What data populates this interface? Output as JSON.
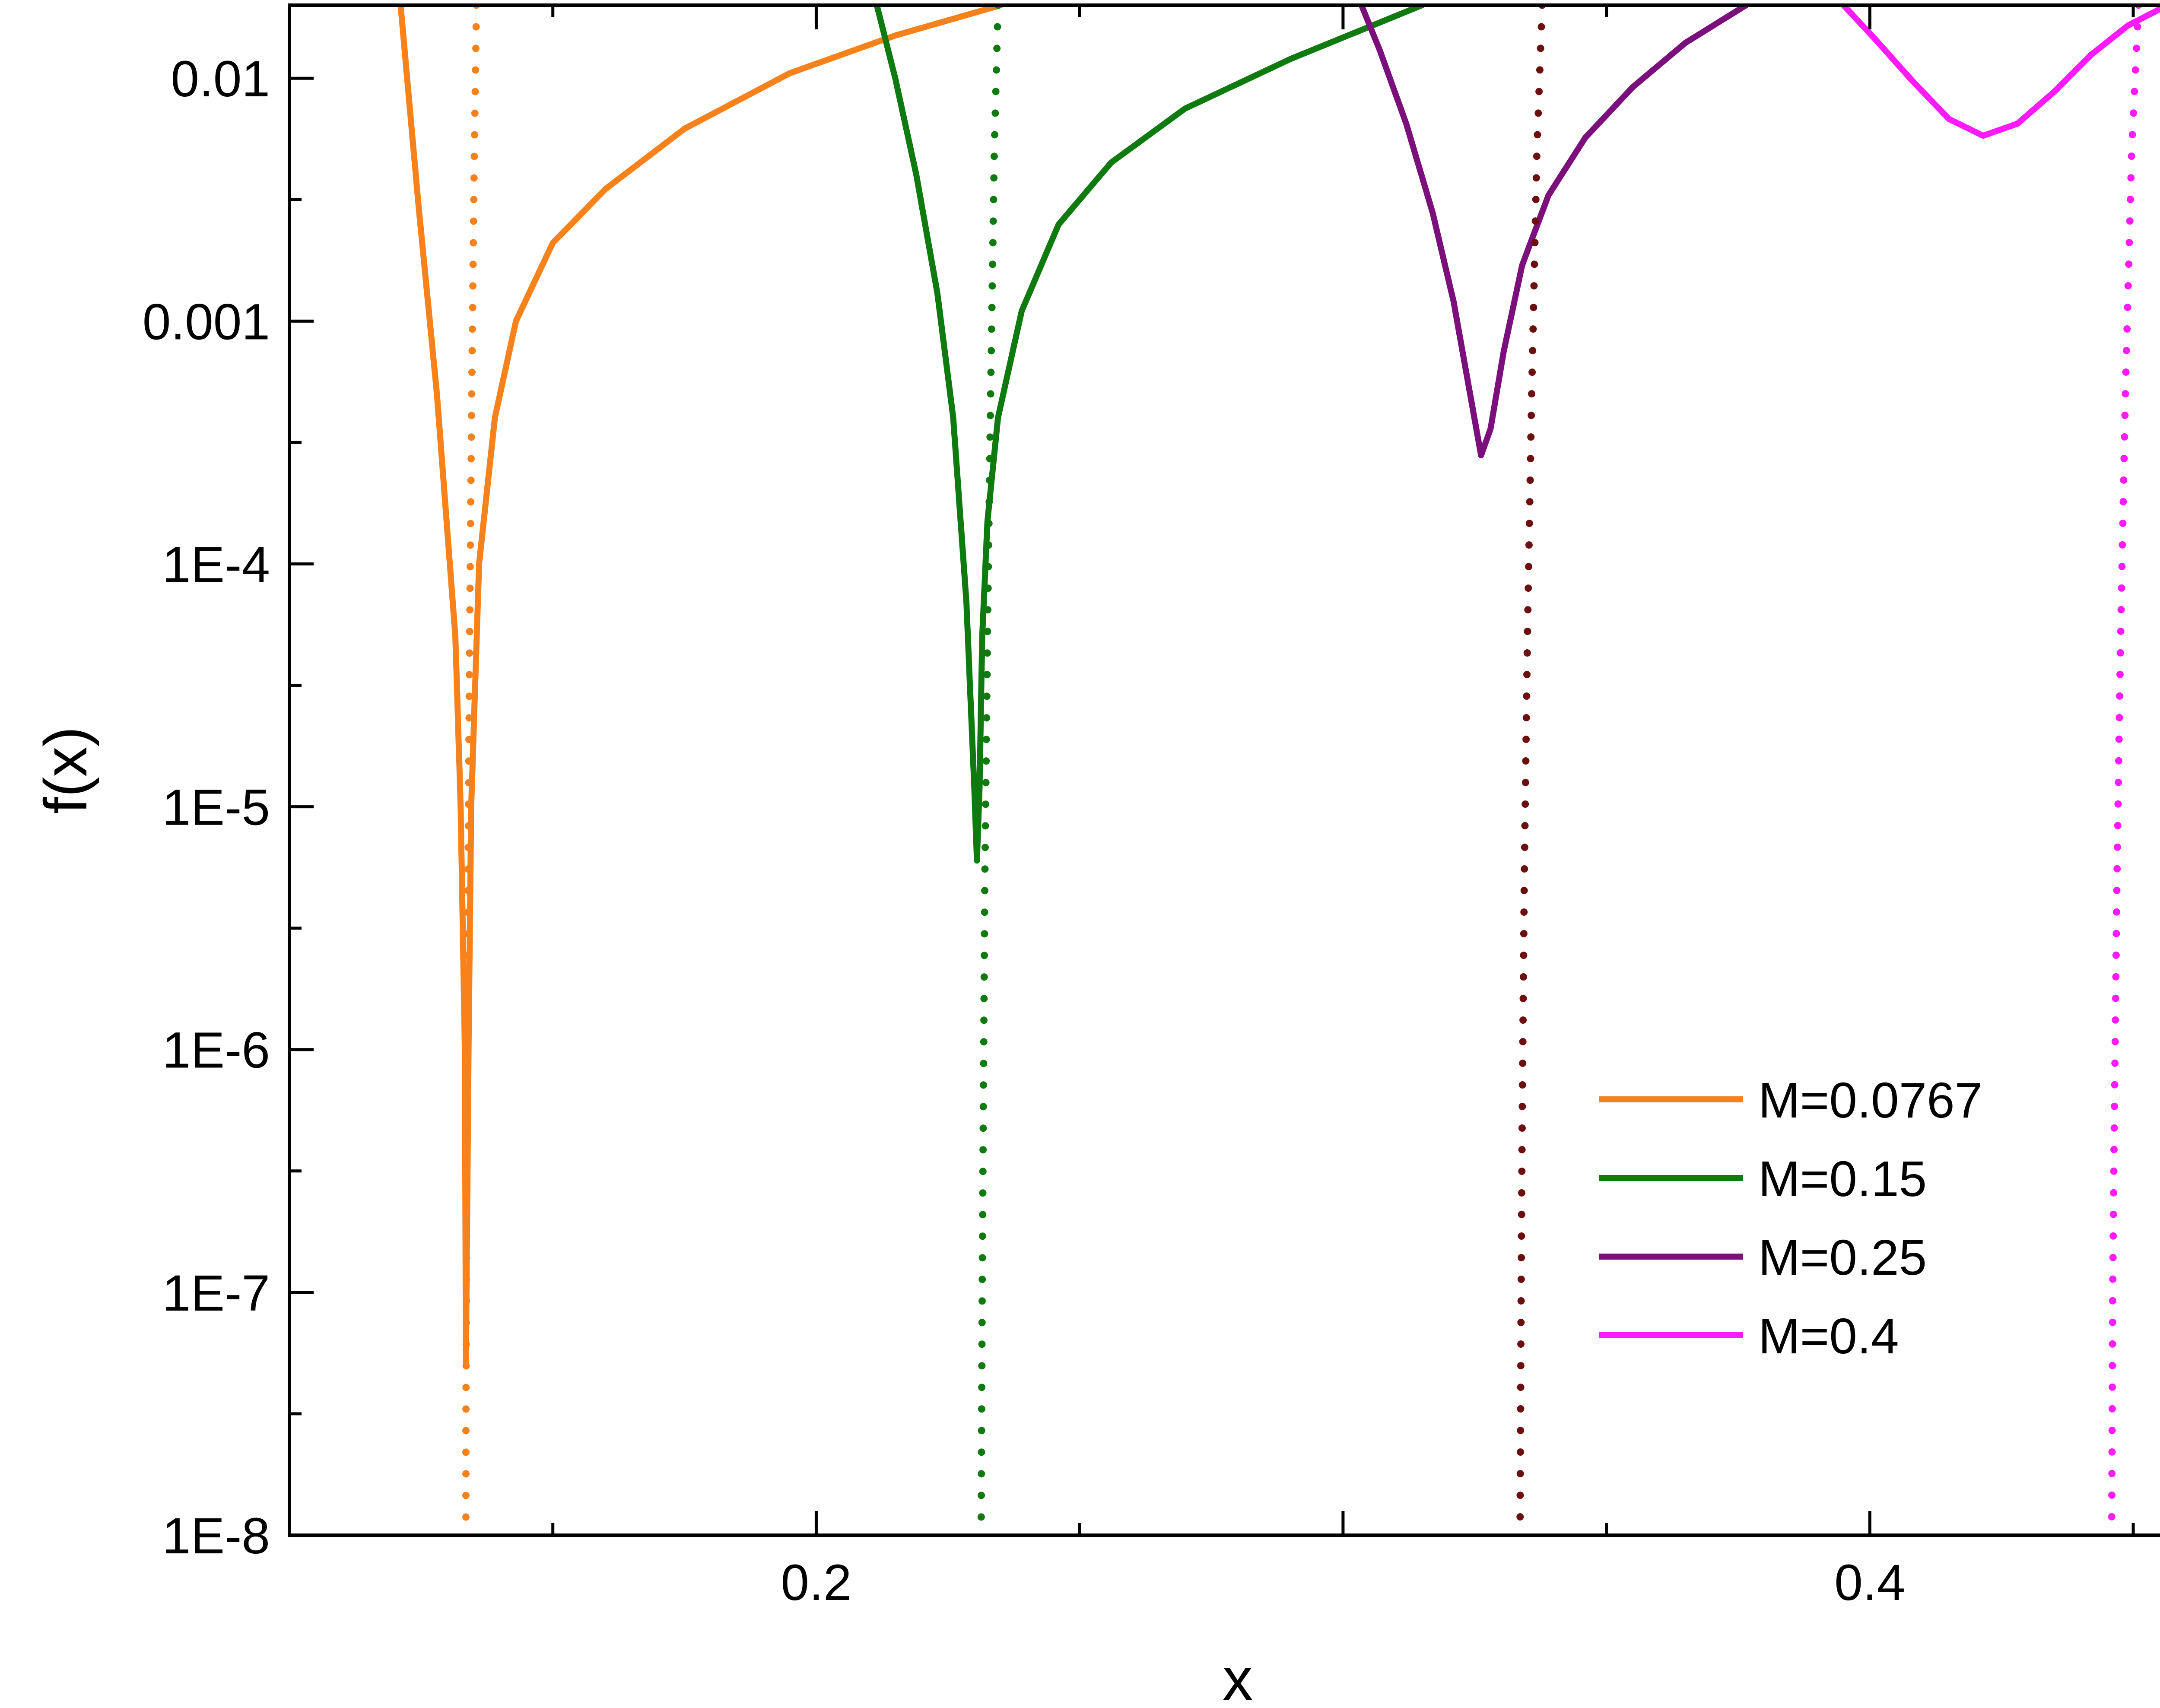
{
  "chart_data": {
    "type": "line",
    "xlabel": "x",
    "ylabel": "f(x)",
    "xscale": "linear",
    "yscale": "log",
    "xlim": [
      0.1,
      0.46
    ],
    "ylim": [
      1e-08,
      0.02
    ],
    "x_ticks": [
      0.2,
      0.4
    ],
    "x_tick_labels": [
      "0.2",
      "0.4"
    ],
    "y_ticks": [
      1e-08,
      1e-07,
      1e-06,
      1e-05,
      0.0001,
      0.001,
      0.01
    ],
    "y_tick_labels": [
      "1E-8",
      "1E-7",
      "1E-6",
      "1E-5",
      "1E-4",
      "0.001",
      "0.01"
    ],
    "legend_position": "bottom-right",
    "series": [
      {
        "name": "M=0.0767",
        "color": "#f7821b",
        "style": "solid",
        "x": [
          0.1211,
          0.1245,
          0.128,
          0.1315,
          0.1325,
          0.1333,
          0.1335,
          0.134,
          0.1345,
          0.136,
          0.139,
          0.143,
          0.15,
          0.16,
          0.175,
          0.195,
          0.215,
          0.235
        ],
        "y": [
          0.02,
          0.003,
          0.0005,
          5e-05,
          1e-05,
          1e-06,
          5e-08,
          1e-06,
          1e-05,
          0.0001,
          0.0004,
          0.001,
          0.0021,
          0.0035,
          0.0062,
          0.0105,
          0.015,
          0.02
        ]
      },
      {
        "name": "M=0.15",
        "color": "#0f7a0f",
        "style": "solid",
        "x": [
          0.2115,
          0.215,
          0.219,
          0.223,
          0.226,
          0.2285,
          0.23,
          0.2305,
          0.231,
          0.2315,
          0.2325,
          0.2345,
          0.239,
          0.246,
          0.256,
          0.27,
          0.29,
          0.315
        ],
        "y": [
          0.02,
          0.01,
          0.004,
          0.0013,
          0.0004,
          7e-05,
          1.2e-05,
          6e-06,
          1.2e-05,
          5e-05,
          0.00015,
          0.0004,
          0.0011,
          0.0025,
          0.0045,
          0.0075,
          0.012,
          0.02
        ]
      },
      {
        "name": "M=0.25",
        "color": "#7b0f7b",
        "style": "solid",
        "x": [
          0.3035,
          0.307,
          0.312,
          0.317,
          0.321,
          0.3245,
          0.3262,
          0.328,
          0.3305,
          0.334,
          0.339,
          0.346,
          0.355,
          0.365,
          0.3765
        ],
        "y": [
          0.02,
          0.013,
          0.0065,
          0.0028,
          0.0012,
          0.00045,
          0.00028,
          0.00036,
          0.00075,
          0.0017,
          0.0033,
          0.0057,
          0.0092,
          0.014,
          0.02
        ]
      },
      {
        "name": "M=0.4",
        "color": "#ff1aff",
        "style": "solid",
        "x": [
          0.395,
          0.401,
          0.408,
          0.415,
          0.4215,
          0.428,
          0.435,
          0.442,
          0.449,
          0.4565
        ],
        "y": [
          0.02,
          0.0145,
          0.0098,
          0.0068,
          0.0058,
          0.0065,
          0.0088,
          0.0125,
          0.0165,
          0.02
        ]
      },
      {
        "name": "M=0.0767 (dotted)",
        "color": "#f7821b",
        "style": "dotted",
        "x": [
          0.1355,
          0.1351,
          0.1346,
          0.1342,
          0.1339,
          0.1337,
          0.1336,
          0.1335,
          0.1335
        ],
        "y": [
          0.02,
          0.005,
          0.0005,
          5e-05,
          5e-06,
          5e-07,
          1e-07,
          3e-08,
          1e-08
        ]
      },
      {
        "name": "M=0.15 (dotted)",
        "color": "#0f7a0f",
        "style": "dotted",
        "x": [
          0.2345,
          0.2338,
          0.2331,
          0.2325,
          0.232,
          0.2317,
          0.2315,
          0.2314,
          0.2313
        ],
        "y": [
          0.02,
          0.005,
          0.0005,
          5e-05,
          5e-06,
          5e-07,
          1e-07,
          3e-08,
          1e-08
        ]
      },
      {
        "name": "M=0.25 (dotted)",
        "color": "#6e0f0f",
        "style": "dotted",
        "x": [
          0.3378,
          0.3368,
          0.3358,
          0.335,
          0.3344,
          0.334,
          0.3338,
          0.3337,
          0.3336
        ],
        "y": [
          0.02,
          0.005,
          0.0005,
          5e-05,
          5e-06,
          5e-07,
          1e-07,
          3e-08,
          1e-08
        ]
      },
      {
        "name": "M=0.4 (dotted)",
        "color": "#ff1aff",
        "style": "dotted",
        "x": [
          0.451,
          0.4497,
          0.4485,
          0.4476,
          0.4469,
          0.4464,
          0.4461,
          0.446,
          0.4459
        ],
        "y": [
          0.02,
          0.005,
          0.0005,
          5e-05,
          5e-06,
          5e-07,
          1e-07,
          3e-08,
          1e-08
        ]
      }
    ],
    "legend": [
      {
        "label": "M=0.0767",
        "color": "#f7821b"
      },
      {
        "label": "M=0.15",
        "color": "#0f7a0f"
      },
      {
        "label": "M=0.25",
        "color": "#7b0f7b"
      },
      {
        "label": "M=0.4",
        "color": "#ff1aff"
      }
    ]
  }
}
